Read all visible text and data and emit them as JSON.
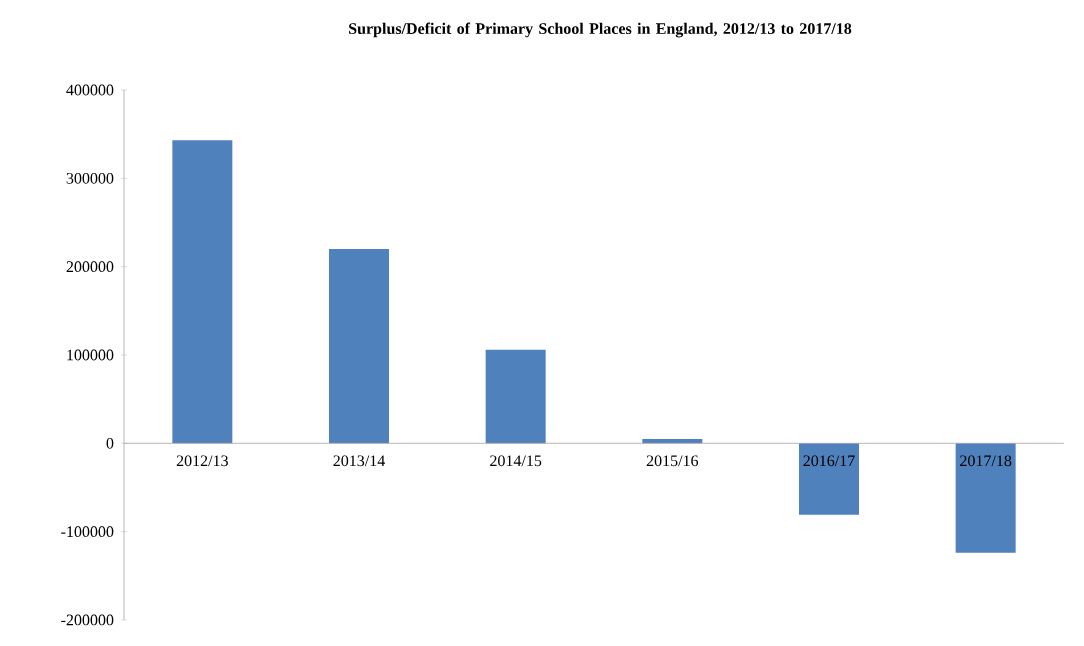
{
  "chart_data": {
    "type": "bar",
    "title": "Surplus/Deficit of Primary School Places in England, 2012/13 to 2017/18",
    "categories": [
      "2012/13",
      "2013/14",
      "2014/15",
      "2015/16",
      "2016/17",
      "2017/18"
    ],
    "values": [
      343000,
      220000,
      106000,
      5000,
      -81000,
      -124000
    ],
    "color": "#4f81bd",
    "ylim": [
      -200000,
      400000
    ],
    "yticks": [
      -200000,
      -100000,
      0,
      100000,
      200000,
      300000,
      400000
    ]
  }
}
